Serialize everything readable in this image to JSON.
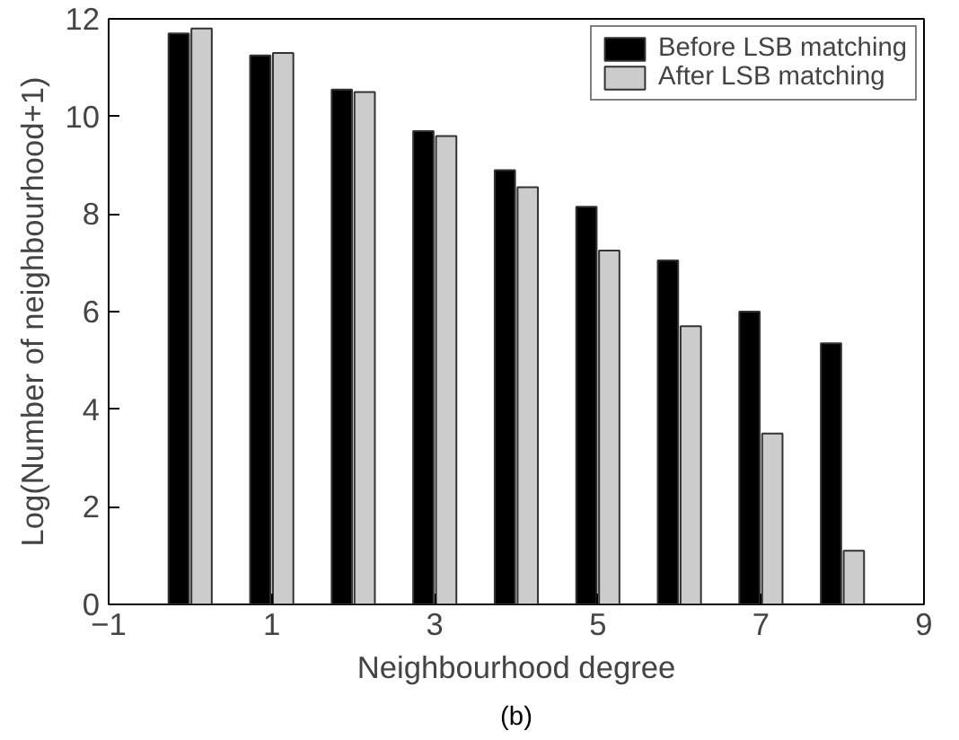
{
  "chart_data": {
    "type": "bar",
    "xlabel": "Neighbourhood degree",
    "ylabel": "Log(Number of neighbourhood+1)",
    "x": [
      0,
      1,
      2,
      3,
      4,
      5,
      6,
      7,
      8
    ],
    "xlim": [
      -1,
      9
    ],
    "xticks": [
      -1,
      1,
      3,
      5,
      7,
      9
    ],
    "ylim": [
      0,
      12
    ],
    "yticks": [
      0,
      2,
      4,
      6,
      8,
      10,
      12
    ],
    "legend": "top right",
    "grid": false,
    "series": [
      {
        "name": "Before LSB matching",
        "color": "#000000",
        "values": [
          11.7,
          11.25,
          10.55,
          9.7,
          8.9,
          8.15,
          7.05,
          6.0,
          5.35
        ]
      },
      {
        "name": "After LSB matching",
        "color": "#cccccc",
        "values": [
          11.8,
          11.3,
          10.5,
          9.6,
          8.55,
          7.25,
          5.7,
          3.5,
          1.1
        ]
      }
    ],
    "annotations": [
      "(b)"
    ]
  }
}
